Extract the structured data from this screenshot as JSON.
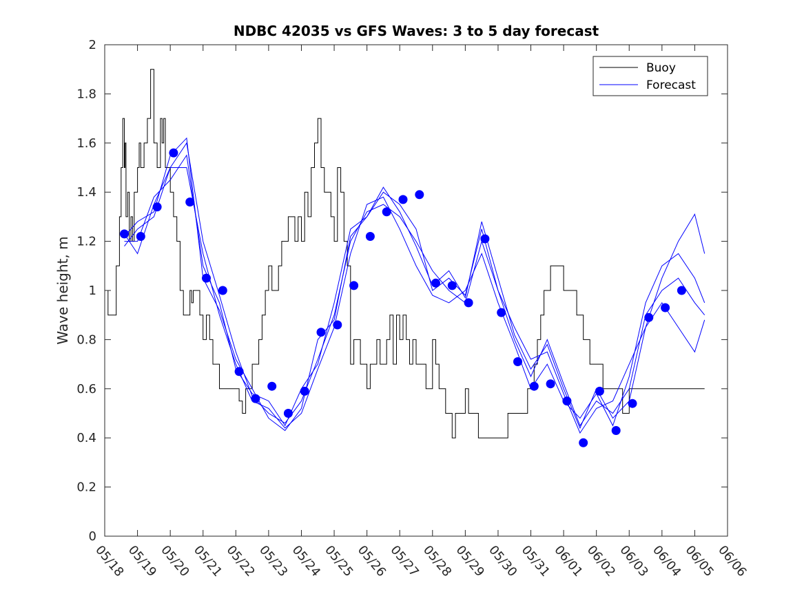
{
  "chart_data": {
    "type": "line",
    "title": "NDBC 42035 vs GFS Waves: 3 to 5 day forecast",
    "xlabel": "",
    "ylabel": "Wave height, m",
    "xlim": [
      "05/18",
      "06/06"
    ],
    "ylim": [
      0,
      2
    ],
    "x_tick_labels": [
      "05/18",
      "05/19",
      "05/20",
      "05/21",
      "05/22",
      "05/23",
      "05/24",
      "05/25",
      "05/26",
      "05/27",
      "05/28",
      "05/29",
      "05/30",
      "05/31",
      "06/01",
      "06/02",
      "06/03",
      "06/04",
      "06/05",
      "06/06"
    ],
    "y_ticks": [
      0,
      0.2,
      0.4,
      0.6,
      0.8,
      1,
      1.2,
      1.4,
      1.6,
      1.8,
      2
    ],
    "y_tick_labels": [
      "0",
      "0.2",
      "0.4",
      "0.6",
      "0.8",
      "1",
      "1.2",
      "1.4",
      "1.6",
      "1.8",
      "2"
    ],
    "grid": false,
    "legend": {
      "position": "top-right",
      "entries": [
        "Buoy",
        "Forecast"
      ]
    },
    "colors": {
      "buoy": "#000000",
      "forecast": "#0000ff"
    },
    "buoy": {
      "name": "Buoy",
      "x": [
        0,
        0.1,
        0.2,
        0.35,
        0.45,
        0.5,
        0.55,
        0.6,
        0.62,
        0.65,
        0.7,
        0.75,
        0.8,
        0.85,
        0.9,
        0.95,
        1.0,
        1.05,
        1.1,
        1.15,
        1.2,
        1.3,
        1.4,
        1.5,
        1.6,
        1.65,
        1.7,
        1.75,
        1.8,
        1.85,
        1.9,
        2.0,
        2.1,
        2.2,
        2.3,
        2.4,
        2.5,
        2.6,
        2.65,
        2.7,
        2.75,
        2.8,
        2.9,
        3.0,
        3.1,
        3.2,
        3.3,
        3.4,
        3.5,
        3.55,
        3.6,
        3.65,
        3.7,
        3.8,
        3.9,
        4.0,
        4.1,
        4.2,
        4.3,
        4.4,
        4.5,
        4.6,
        4.7,
        4.8,
        4.9,
        5.0,
        5.1,
        5.2,
        5.3,
        5.4,
        5.5,
        5.6,
        5.7,
        5.8,
        5.9,
        6.0,
        6.1,
        6.2,
        6.3,
        6.4,
        6.5,
        6.6,
        6.7,
        6.8,
        6.9,
        7.0,
        7.1,
        7.2,
        7.3,
        7.4,
        7.5,
        7.6,
        7.7,
        7.8,
        7.9,
        8.0,
        8.1,
        8.2,
        8.3,
        8.4,
        8.5,
        8.6,
        8.7,
        8.8,
        8.9,
        9.0,
        9.1,
        9.2,
        9.3,
        9.4,
        9.5,
        9.6,
        9.7,
        9.8,
        9.9,
        10.0,
        10.1,
        10.2,
        10.3,
        10.4,
        10.5,
        10.6,
        10.7,
        10.8,
        10.9,
        11.0,
        11.1,
        11.2,
        11.3,
        11.4,
        11.5,
        11.6,
        11.7,
        11.8,
        11.9,
        12.0,
        12.1,
        12.2,
        12.3,
        12.4,
        12.5,
        12.6,
        12.7,
        12.8,
        12.9,
        13.0,
        13.1,
        13.2,
        13.3,
        13.4,
        13.5,
        13.6,
        13.7,
        13.8,
        13.9,
        14.0,
        14.2,
        14.4,
        14.6,
        14.8,
        15.0,
        15.2,
        15.4,
        15.6,
        15.8,
        16.0,
        16.1,
        16.2,
        16.3,
        16.4,
        16.5,
        16.6,
        16.7,
        16.8,
        16.9,
        17.0,
        17.1,
        17.2,
        17.3,
        17.4,
        17.5,
        17.6,
        17.7,
        17.8,
        17.9,
        18.0,
        18.1,
        18.2,
        18.3
      ],
      "y": [
        1.0,
        0.9,
        0.9,
        1.1,
        1.3,
        1.5,
        1.7,
        1.5,
        1.6,
        1.3,
        1.4,
        1.2,
        1.3,
        1.2,
        1.4,
        1.4,
        1.5,
        1.6,
        1.5,
        1.5,
        1.6,
        1.7,
        1.9,
        1.6,
        1.5,
        1.5,
        1.7,
        1.6,
        1.7,
        1.5,
        1.5,
        1.4,
        1.3,
        1.2,
        1.0,
        0.9,
        0.9,
        1.0,
        0.95,
        1.0,
        1.0,
        1.0,
        0.9,
        0.8,
        0.9,
        0.8,
        0.7,
        0.7,
        0.6,
        0.6,
        0.6,
        0.6,
        0.6,
        0.6,
        0.6,
        0.6,
        0.55,
        0.5,
        0.6,
        0.6,
        0.7,
        0.7,
        0.8,
        0.9,
        1.0,
        1.1,
        1.0,
        1.0,
        1.1,
        1.2,
        1.2,
        1.3,
        1.3,
        1.2,
        1.3,
        1.2,
        1.4,
        1.3,
        1.5,
        1.6,
        1.7,
        1.5,
        1.4,
        1.4,
        1.3,
        1.2,
        1.5,
        1.4,
        1.2,
        1.1,
        0.7,
        0.8,
        0.8,
        0.7,
        0.7,
        0.6,
        0.7,
        0.7,
        0.8,
        0.7,
        0.7,
        0.8,
        0.9,
        0.7,
        0.9,
        0.8,
        0.9,
        0.8,
        0.7,
        0.8,
        0.7,
        0.7,
        0.7,
        0.6,
        0.6,
        0.8,
        0.7,
        0.6,
        0.6,
        0.5,
        0.5,
        0.4,
        0.5,
        0.5,
        0.5,
        0.6,
        0.5,
        0.5,
        0.5,
        0.4,
        0.4,
        0.4,
        0.4,
        0.4,
        0.4,
        0.4,
        0.4,
        0.4,
        0.5,
        0.5,
        0.5,
        0.5,
        0.5,
        0.5,
        0.6,
        0.6,
        0.7,
        0.8,
        0.9,
        1.0,
        1.0,
        1.1,
        1.1,
        1.1,
        1.1,
        1.0,
        1.0,
        0.9,
        0.8,
        0.7,
        0.7,
        0.6,
        0.6,
        0.6,
        0.5,
        0.6,
        0.6,
        0.6,
        0.6,
        0.6,
        0.6,
        0.6,
        0.6,
        0.6,
        0.6,
        0.6,
        0.6,
        0.6,
        0.6,
        0.6,
        0.6,
        0.6,
        0.6,
        0.6,
        0.6,
        0.6,
        0.6,
        0.6,
        0.6
      ]
    },
    "forecast_dots": {
      "name": "Forecast",
      "x": [
        0.6,
        1.1,
        1.6,
        2.1,
        2.6,
        3.1,
        3.6,
        4.1,
        4.6,
        5.1,
        5.6,
        6.1,
        6.6,
        7.1,
        7.6,
        8.1,
        8.6,
        9.1,
        9.6,
        10.1,
        10.6,
        11.1,
        11.6,
        12.1,
        12.6,
        13.1,
        13.6,
        14.1,
        14.6,
        15.1,
        15.6,
        16.1,
        16.6,
        17.1,
        17.6
      ],
      "y": [
        1.23,
        1.22,
        1.34,
        1.56,
        1.36,
        1.05,
        1.0,
        0.67,
        0.56,
        0.61,
        0.5,
        0.59,
        0.83,
        0.86,
        1.02,
        1.22,
        1.32,
        1.37,
        1.39,
        1.03,
        1.02,
        0.95,
        1.21,
        0.91,
        0.71,
        0.61,
        0.62,
        0.55,
        0.38,
        0.59,
        0.43,
        0.54,
        0.89,
        0.93,
        1.0
      ]
    },
    "forecast_runs": [
      {
        "x": [
          0.6,
          1.0,
          1.5,
          2.0,
          2.5,
          3.0,
          3.5,
          4.0,
          4.5,
          5.0,
          5.5,
          6.0,
          6.5,
          7.0,
          7.5,
          8.0,
          8.5,
          9.0,
          9.5,
          10.0,
          10.5,
          11.0,
          11.5,
          12.0,
          12.5,
          13.0,
          13.5,
          14.0,
          14.5,
          15.0,
          15.5,
          16.0,
          16.5,
          17.0,
          17.5,
          18.0,
          18.3
        ],
        "y": [
          1.23,
          1.15,
          1.35,
          1.5,
          1.6,
          1.2,
          0.98,
          0.75,
          0.57,
          0.5,
          0.46,
          0.55,
          0.72,
          0.9,
          1.2,
          1.32,
          1.35,
          1.3,
          1.2,
          1.08,
          1.0,
          0.95,
          1.2,
          1.0,
          0.85,
          0.72,
          0.75,
          0.58,
          0.42,
          0.52,
          0.55,
          0.7,
          0.85,
          0.95,
          0.85,
          0.75,
          0.88
        ]
      },
      {
        "x": [
          0.6,
          1.0,
          1.5,
          2.0,
          2.5,
          3.0,
          3.5,
          4.0,
          4.5,
          5.0,
          5.5,
          6.0,
          6.5,
          7.0,
          7.5,
          8.0,
          8.5,
          9.0,
          9.5,
          10.0,
          10.5,
          11.0,
          11.5,
          12.0,
          12.5,
          13.0,
          13.5,
          14.0,
          14.5,
          15.0,
          15.5,
          16.0,
          16.5,
          17.0,
          17.5,
          18.0,
          18.3
        ],
        "y": [
          1.2,
          1.2,
          1.38,
          1.45,
          1.55,
          1.1,
          0.95,
          0.68,
          0.58,
          0.55,
          0.45,
          0.6,
          0.7,
          0.95,
          1.25,
          1.3,
          1.4,
          1.35,
          1.25,
          1.0,
          1.05,
          0.98,
          1.25,
          1.0,
          0.8,
          0.65,
          0.8,
          0.62,
          0.45,
          0.55,
          0.5,
          0.6,
          0.9,
          1.0,
          1.05,
          0.95,
          0.9
        ]
      },
      {
        "x": [
          0.6,
          1.0,
          1.5,
          2.0,
          2.5,
          3.0,
          3.5,
          4.0,
          4.5,
          5.0,
          5.5,
          6.0,
          6.5,
          7.0,
          7.5,
          8.0,
          8.5,
          9.0,
          9.5,
          10.0,
          10.5,
          11.0,
          11.5,
          12.0,
          12.5,
          13.0,
          13.5,
          14.0,
          14.5,
          15.0,
          15.5,
          16.0,
          16.5,
          17.0,
          17.5,
          18.0,
          18.3
        ],
        "y": [
          1.18,
          1.25,
          1.3,
          1.5,
          1.5,
          1.15,
          0.9,
          0.7,
          0.55,
          0.52,
          0.44,
          0.5,
          0.68,
          0.85,
          1.15,
          1.35,
          1.38,
          1.25,
          1.1,
          0.98,
          0.95,
          1.0,
          1.15,
          0.95,
          0.78,
          0.6,
          0.7,
          0.55,
          0.48,
          0.58,
          0.45,
          0.65,
          0.95,
          1.1,
          1.15,
          1.05,
          0.95
        ]
      },
      {
        "x": [
          0.6,
          1.0,
          1.5,
          2.0,
          2.5,
          3.0,
          3.5,
          4.0,
          4.5,
          5.0,
          5.5,
          6.0,
          6.5,
          7.0,
          7.5,
          8.0,
          8.5,
          9.0,
          9.5,
          10.0,
          10.5,
          11.0,
          11.5,
          12.0,
          12.5,
          13.0,
          13.5,
          14.0,
          14.5,
          15.0,
          15.5,
          16.0,
          16.5,
          17.0,
          17.5,
          18.0,
          18.3
        ],
        "y": [
          1.22,
          1.28,
          1.32,
          1.55,
          1.62,
          1.05,
          0.92,
          0.72,
          0.6,
          0.48,
          0.43,
          0.52,
          0.8,
          0.88,
          1.22,
          1.3,
          1.42,
          1.32,
          1.18,
          1.02,
          1.08,
          0.97,
          1.28,
          1.05,
          0.82,
          0.68,
          0.78,
          0.6,
          0.44,
          0.6,
          0.48,
          0.55,
          0.85,
          1.05,
          1.2,
          1.31,
          1.15
        ]
      }
    ]
  }
}
